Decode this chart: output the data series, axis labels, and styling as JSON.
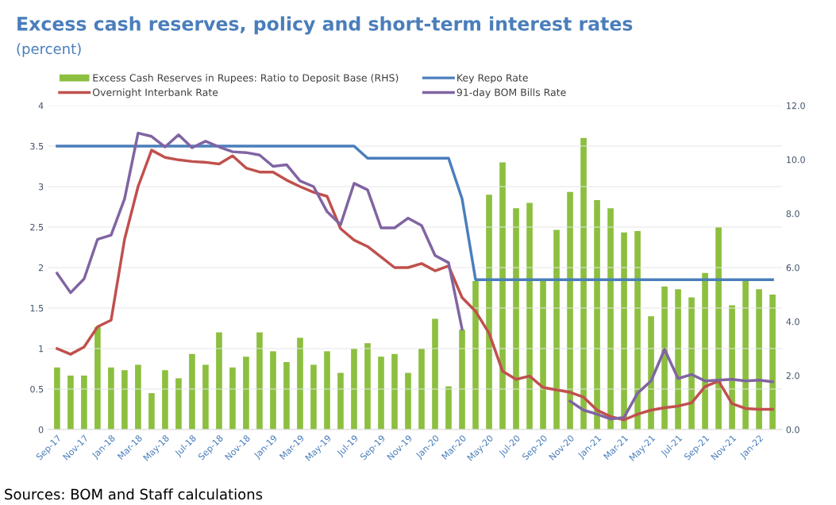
{
  "chart_data": {
    "type": "bar",
    "title": "Excess cash reserves, policy and short-term interest rates",
    "subtitle": "(percent)",
    "categories": [
      "Sep-17",
      null,
      "Nov-17",
      null,
      "Jan-18",
      null,
      "Mar-18",
      null,
      "May-18",
      null,
      "Jul-18",
      null,
      "Sep-18",
      null,
      "Nov-18",
      null,
      "Jan-19",
      null,
      "Mar-19",
      null,
      "May-19",
      null,
      "Jul-19",
      null,
      "Sep-19",
      null,
      "Nov-19",
      null,
      "Jan-20",
      null,
      "Mar-20",
      null,
      "May-20",
      null,
      "Jul-20",
      null,
      "Sep-20",
      null,
      "Nov-20",
      null,
      "Jan-21",
      null,
      "Mar-21",
      null,
      "May-21",
      null,
      "Jul-21",
      null,
      "Sep-21",
      null,
      "Nov-21",
      null,
      "Jan-22",
      null
    ],
    "series": [
      {
        "name": "Excess Cash Reserves in Rupees: Ratio to Deposit Base (RHS)",
        "axis": "y2",
        "color": "#8cbf3f",
        "values": [
          2.3,
          2.0,
          2.0,
          3.8,
          2.3,
          2.2,
          2.4,
          1.35,
          2.2,
          1.9,
          2.8,
          2.4,
          3.6,
          2.3,
          2.7,
          3.6,
          2.9,
          2.5,
          3.4,
          2.4,
          2.9,
          2.1,
          3.0,
          3.2,
          2.7,
          2.8,
          2.1,
          3.0,
          4.1,
          1.6,
          3.7,
          5.5,
          8.7,
          9.9,
          8.2,
          8.4,
          5.5,
          7.4,
          8.8,
          10.8,
          8.5,
          8.2,
          7.3,
          7.35,
          4.2,
          5.3,
          5.2,
          4.9,
          5.8,
          7.5,
          4.6,
          5.5,
          5.2,
          5.0
        ]
      },
      {
        "name": "Key Repo Rate",
        "type": "line",
        "color": "#4a7ebb",
        "values": [
          3.5,
          3.5,
          3.5,
          3.5,
          3.5,
          3.5,
          3.5,
          3.5,
          3.5,
          3.5,
          3.5,
          3.5,
          3.5,
          3.5,
          3.5,
          3.5,
          3.5,
          3.5,
          3.5,
          3.5,
          3.5,
          3.5,
          3.5,
          3.35,
          3.35,
          3.35,
          3.35,
          3.35,
          3.35,
          3.35,
          2.85,
          1.85,
          1.85,
          1.85,
          1.85,
          1.85,
          1.85,
          1.85,
          1.85,
          1.85,
          1.85,
          1.85,
          1.85,
          1.85,
          1.85,
          1.85,
          1.85,
          1.85,
          1.85,
          1.85,
          1.85,
          1.85,
          1.85,
          1.85
        ]
      },
      {
        "name": "Overnight Interbank Rate",
        "type": "line",
        "color": "#c0504d",
        "values": [
          1.0,
          0.93,
          1.02,
          1.27,
          1.35,
          2.35,
          3.0,
          3.45,
          3.36,
          3.33,
          3.31,
          3.3,
          3.28,
          3.38,
          3.23,
          3.18,
          3.18,
          3.08,
          3.0,
          2.93,
          2.88,
          2.48,
          2.34,
          2.26,
          2.13,
          2.0,
          2.0,
          2.05,
          1.96,
          2.02,
          1.63,
          1.46,
          1.19,
          0.72,
          0.62,
          0.66,
          0.52,
          0.49,
          0.46,
          0.4,
          0.24,
          0.16,
          0.12,
          0.19,
          0.24,
          0.27,
          0.29,
          0.33,
          0.53,
          0.6,
          0.32,
          0.26,
          0.25,
          0.25
        ]
      },
      {
        "name": "91-day BOM Bills Rate",
        "type": "line",
        "color": "#8064a2",
        "values": [
          1.93,
          1.69,
          1.86,
          2.35,
          2.4,
          2.85,
          3.66,
          3.62,
          3.49,
          3.64,
          3.48,
          3.56,
          3.49,
          3.43,
          3.42,
          3.39,
          3.25,
          3.27,
          3.07,
          3.0,
          2.69,
          2.53,
          3.04,
          2.96,
          2.49,
          2.49,
          2.61,
          2.52,
          2.15,
          2.06,
          1.24,
          null,
          null,
          null,
          null,
          null,
          null,
          null,
          0.35,
          0.24,
          0.19,
          0.13,
          0.15,
          0.45,
          0.6,
          0.99,
          0.63,
          0.68,
          0.6,
          0.61,
          0.62,
          0.6,
          0.61,
          0.59
        ]
      }
    ],
    "ylim": [
      0,
      4
    ],
    "yticks": [
      0,
      0.5,
      1,
      1.5,
      2,
      2.5,
      3,
      3.5,
      4
    ],
    "y2lim": [
      0,
      12
    ],
    "y2ticks": [
      {
        "value": 0,
        "label": "0.0"
      },
      {
        "value": 2,
        "label": "2.0"
      },
      {
        "value": 4,
        "label": "4.0"
      },
      {
        "value": 6,
        "label": "6.0"
      },
      {
        "value": 8,
        "label": "8.0"
      },
      {
        "value": 10,
        "label": "10.0"
      },
      {
        "value": 12,
        "label": "12.0"
      }
    ],
    "grid": "y",
    "legend": "top",
    "annotations": [
      "Sources: BOM and Staff calculations"
    ]
  }
}
